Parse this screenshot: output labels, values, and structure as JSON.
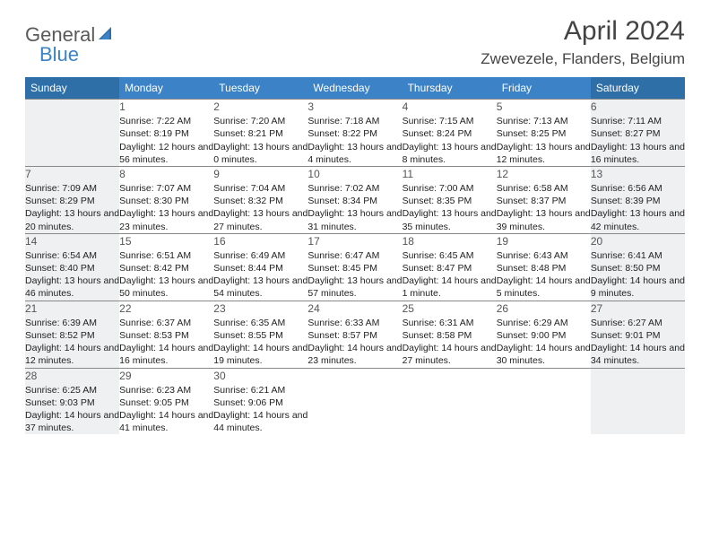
{
  "brand": {
    "part1": "General",
    "part2": "Blue"
  },
  "title": "April 2024",
  "location": "Zwevezele, Flanders, Belgium",
  "colors": {
    "header_weekday": "#3b82c7",
    "header_weekend": "#2f6fa8",
    "weekend_bg": "#eef0f2",
    "border": "#888888",
    "text": "#222222",
    "title_text": "#444444",
    "logo_gray": "#5a5a5a",
    "logo_blue": "#3b82c7"
  },
  "day_labels": [
    "Sunday",
    "Monday",
    "Tuesday",
    "Wednesday",
    "Thursday",
    "Friday",
    "Saturday"
  ],
  "weeks": [
    [
      null,
      {
        "n": "1",
        "sr": "7:22 AM",
        "ss": "8:19 PM",
        "dl": "12 hours and 56 minutes."
      },
      {
        "n": "2",
        "sr": "7:20 AM",
        "ss": "8:21 PM",
        "dl": "13 hours and 0 minutes."
      },
      {
        "n": "3",
        "sr": "7:18 AM",
        "ss": "8:22 PM",
        "dl": "13 hours and 4 minutes."
      },
      {
        "n": "4",
        "sr": "7:15 AM",
        "ss": "8:24 PM",
        "dl": "13 hours and 8 minutes."
      },
      {
        "n": "5",
        "sr": "7:13 AM",
        "ss": "8:25 PM",
        "dl": "13 hours and 12 minutes."
      },
      {
        "n": "6",
        "sr": "7:11 AM",
        "ss": "8:27 PM",
        "dl": "13 hours and 16 minutes."
      }
    ],
    [
      {
        "n": "7",
        "sr": "7:09 AM",
        "ss": "8:29 PM",
        "dl": "13 hours and 20 minutes."
      },
      {
        "n": "8",
        "sr": "7:07 AM",
        "ss": "8:30 PM",
        "dl": "13 hours and 23 minutes."
      },
      {
        "n": "9",
        "sr": "7:04 AM",
        "ss": "8:32 PM",
        "dl": "13 hours and 27 minutes."
      },
      {
        "n": "10",
        "sr": "7:02 AM",
        "ss": "8:34 PM",
        "dl": "13 hours and 31 minutes."
      },
      {
        "n": "11",
        "sr": "7:00 AM",
        "ss": "8:35 PM",
        "dl": "13 hours and 35 minutes."
      },
      {
        "n": "12",
        "sr": "6:58 AM",
        "ss": "8:37 PM",
        "dl": "13 hours and 39 minutes."
      },
      {
        "n": "13",
        "sr": "6:56 AM",
        "ss": "8:39 PM",
        "dl": "13 hours and 42 minutes."
      }
    ],
    [
      {
        "n": "14",
        "sr": "6:54 AM",
        "ss": "8:40 PM",
        "dl": "13 hours and 46 minutes."
      },
      {
        "n": "15",
        "sr": "6:51 AM",
        "ss": "8:42 PM",
        "dl": "13 hours and 50 minutes."
      },
      {
        "n": "16",
        "sr": "6:49 AM",
        "ss": "8:44 PM",
        "dl": "13 hours and 54 minutes."
      },
      {
        "n": "17",
        "sr": "6:47 AM",
        "ss": "8:45 PM",
        "dl": "13 hours and 57 minutes."
      },
      {
        "n": "18",
        "sr": "6:45 AM",
        "ss": "8:47 PM",
        "dl": "14 hours and 1 minute."
      },
      {
        "n": "19",
        "sr": "6:43 AM",
        "ss": "8:48 PM",
        "dl": "14 hours and 5 minutes."
      },
      {
        "n": "20",
        "sr": "6:41 AM",
        "ss": "8:50 PM",
        "dl": "14 hours and 9 minutes."
      }
    ],
    [
      {
        "n": "21",
        "sr": "6:39 AM",
        "ss": "8:52 PM",
        "dl": "14 hours and 12 minutes."
      },
      {
        "n": "22",
        "sr": "6:37 AM",
        "ss": "8:53 PM",
        "dl": "14 hours and 16 minutes."
      },
      {
        "n": "23",
        "sr": "6:35 AM",
        "ss": "8:55 PM",
        "dl": "14 hours and 19 minutes."
      },
      {
        "n": "24",
        "sr": "6:33 AM",
        "ss": "8:57 PM",
        "dl": "14 hours and 23 minutes."
      },
      {
        "n": "25",
        "sr": "6:31 AM",
        "ss": "8:58 PM",
        "dl": "14 hours and 27 minutes."
      },
      {
        "n": "26",
        "sr": "6:29 AM",
        "ss": "9:00 PM",
        "dl": "14 hours and 30 minutes."
      },
      {
        "n": "27",
        "sr": "6:27 AM",
        "ss": "9:01 PM",
        "dl": "14 hours and 34 minutes."
      }
    ],
    [
      {
        "n": "28",
        "sr": "6:25 AM",
        "ss": "9:03 PM",
        "dl": "14 hours and 37 minutes."
      },
      {
        "n": "29",
        "sr": "6:23 AM",
        "ss": "9:05 PM",
        "dl": "14 hours and 41 minutes."
      },
      {
        "n": "30",
        "sr": "6:21 AM",
        "ss": "9:06 PM",
        "dl": "14 hours and 44 minutes."
      },
      null,
      null,
      null,
      null
    ]
  ],
  "labels": {
    "sunrise": "Sunrise: ",
    "sunset": "Sunset: ",
    "daylight": "Daylight: "
  }
}
